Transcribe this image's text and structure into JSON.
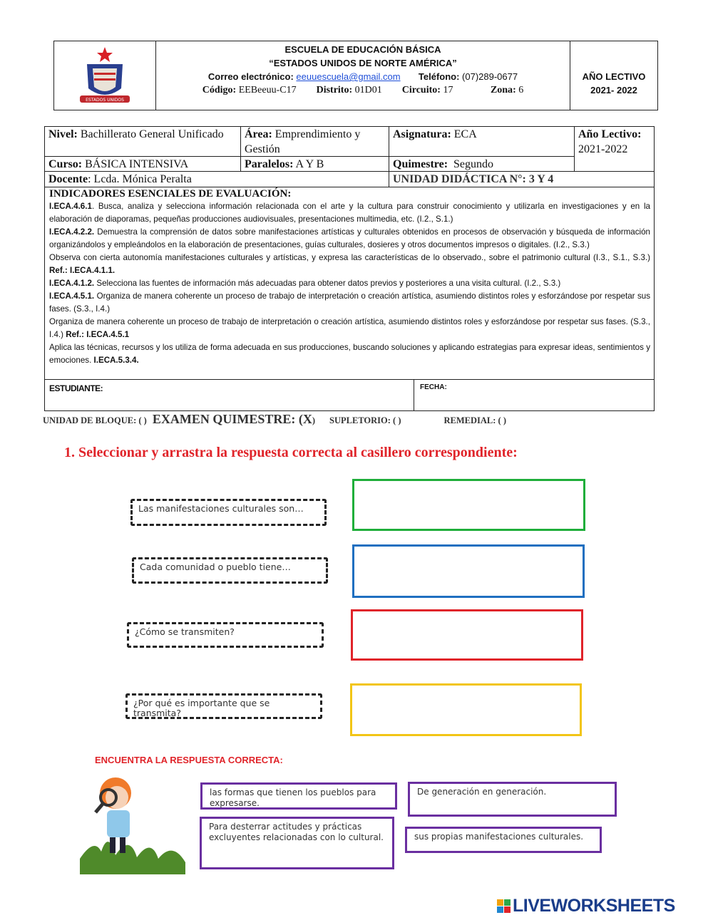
{
  "header": {
    "school": "ESCUELA DE EDUCACIÓN BÁSICA",
    "name": "“ESTADOS UNIDOS DE NORTE AMÉRICA”",
    "email_label": "Correo electrónico",
    "email": "eeuuescuela@gmail.com",
    "phone_label": "Teléfono:",
    "phone": "(07)289-0677",
    "code_label": "Código:",
    "code": "EEBeeuu-C17",
    "district_label": "Distrito:",
    "district": "01D01",
    "circuit_label": "Circuito",
    "circuit": "17",
    "zone_label": "Zona",
    "zone": "6",
    "year_label": "AÑO LECTIVO",
    "year": "2021- 2022",
    "logo_text": "ESTADOS UNIDOS"
  },
  "info": {
    "nivel_label": "Nivel:",
    "nivel": "Bachillerato General Unificado",
    "area_label": "Área:",
    "area": "Emprendimiento y Gestión",
    "asignatura_label": "Asignatura:",
    "asignatura": "ECA",
    "anio_label": "Año Lectivo:",
    "anio": "2021-2022",
    "curso_label": "Curso:",
    "curso": "BÁSICA INTENSIVA",
    "paralelos_label": "Paralelos:",
    "paralelos": "A Y B",
    "quimestre_label": "Quimestre:",
    "quimestre": "Segundo",
    "docente_label": "Docente",
    "docente": "Lcda. Mónica Peralta",
    "unidad": "UNIDAD DIDÁCTICA N°: 3 Y 4",
    "indicadores_title": "INDICADORES ESENCIALES DE EVALUACIÓN:",
    "indicadores": [
      {
        "code": "I.ECA.4.6.1",
        "text": ". Busca, analiza y selecciona información relacionada con el arte y la cultura para construir conocimiento y utilizarla en investigaciones y en la elaboración de diaporamas, pequeñas producciones audiovisuales, presentaciones multimedia, etc. (I.2., S.1.)"
      },
      {
        "code": "I.ECA.4.2.2.",
        "text": "  Demuestra la comprensión de datos sobre manifestaciones artísticas y culturales obtenidos en procesos de observación y búsqueda de información organizándolos y empleándolos en la elaboración de presentaciones, guías culturales, dosieres y otros documentos impresos o digitales. (I.2., S.3.)"
      },
      {
        "text": "Observa con cierta autonomía manifestaciones culturales y artísticas, y expresa las características de lo observado., sobre el patrimonio cultural (I.3., S.1., S.3.) ",
        "ref": "Ref.: I.ECA.4.1.1."
      },
      {
        "code": "I.ECA.4.1.2.",
        "text": " Selecciona las fuentes de información más adecuadas para obtener datos previos y posteriores a una visita cultural. (I.2., S.3.)"
      },
      {
        "code": "I.ECA.4.5.1.",
        "text": " Organiza de manera coherente un proceso de trabajo de interpretación o creación artística, asumiendo distintos roles y esforzándose por respetar sus fases. (S.3., I.4.)"
      },
      {
        "text": "Organiza de manera coherente un proceso de trabajo de interpretación o creación artística, asumiendo distintos roles y esforzándose por respetar sus fases. (S.3., I.4.) ",
        "ref": "Ref.: I.ECA.4.5.1"
      },
      {
        "text": "Aplica las técnicas, recursos y los utiliza de forma adecuada en sus producciones, buscando soluciones y aplicando estrategias para expresar ideas, sentimientos y emociones. ",
        "ref": "I.ECA.5.3.4."
      }
    ],
    "estudiante_label": "ESTUDIANTE:",
    "fecha_label": "FECHA:"
  },
  "exam_line": {
    "bloque": "UNIDAD DE BLOQUE: ( )",
    "quimestre": "EXAMEN QUIMESTRE:  (X",
    "quimestre_close": ")",
    "supletorio": "SUPLETORIO: ( )",
    "remedial": "REMEDIAL:  (  )"
  },
  "question": {
    "title": "1.  Seleccionar y arrastra la respuesta correcta al casillero correspondiente:",
    "prompts": [
      "Las manifestaciones culturales son…",
      "Cada comunidad o pueblo tiene…",
      "¿Cómo se transmiten?",
      "¿Por qué es importante que se transmita?"
    ],
    "drop_colors": [
      "#1fae3a",
      "#1f6fc0",
      "#e0242a",
      "#f2c515"
    ],
    "find_title": "ENCUENTRA LA RESPUESTA CORRECTA:",
    "answers": [
      "las formas que tienen los pueblos para expresarse.",
      "De generación en generación.",
      "Para desterrar actitudes y prácticas excluyentes relacionadas con lo cultural.",
      "sus propias manifestaciones culturales."
    ]
  },
  "footer": {
    "brand": "LIVEWORKSHEETS"
  }
}
